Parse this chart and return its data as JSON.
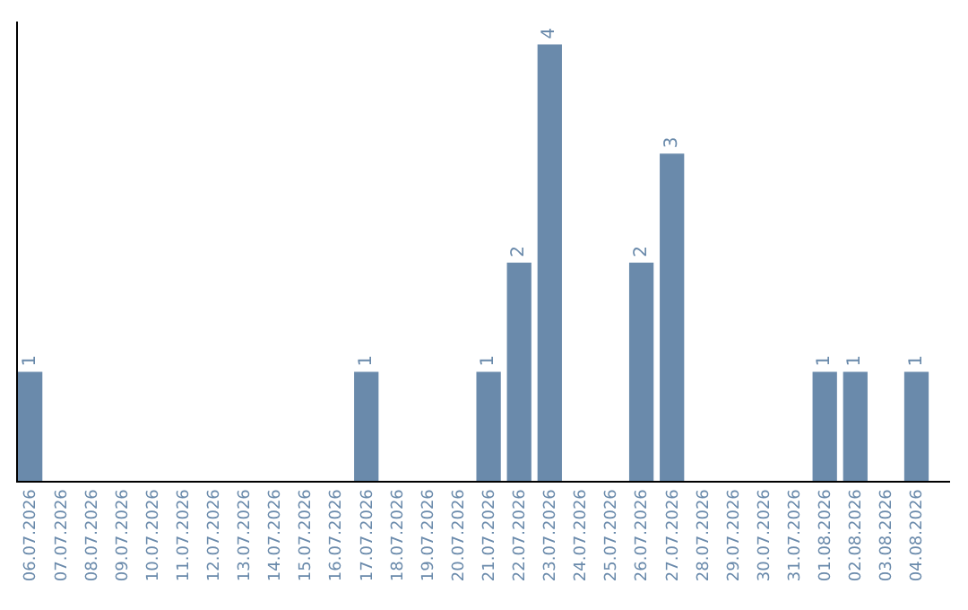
{
  "chart_data": {
    "type": "bar",
    "categories": [
      "06.07.2026",
      "07.07.2026",
      "08.07.2026",
      "09.07.2026",
      "10.07.2026",
      "11.07.2026",
      "12.07.2026",
      "13.07.2026",
      "14.07.2026",
      "15.07.2026",
      "16.07.2026",
      "17.07.2026",
      "18.07.2026",
      "19.07.2026",
      "20.07.2026",
      "21.07.2026",
      "22.07.2026",
      "23.07.2026",
      "24.07.2026",
      "25.07.2026",
      "26.07.2026",
      "27.07.2026",
      "28.07.2026",
      "29.07.2026",
      "30.07.2026",
      "31.07.2026",
      "01.08.2026",
      "02.08.2026",
      "03.08.2026",
      "04.08.2026"
    ],
    "values": [
      1,
      0,
      0,
      0,
      0,
      0,
      0,
      0,
      0,
      0,
      0,
      1,
      0,
      0,
      0,
      1,
      2,
      4,
      0,
      0,
      2,
      3,
      0,
      0,
      0,
      0,
      1,
      1,
      0,
      1
    ],
    "value_labels": [
      "1",
      null,
      null,
      null,
      null,
      null,
      null,
      null,
      null,
      null,
      null,
      "1",
      null,
      null,
      null,
      "1",
      "2",
      "4",
      null,
      null,
      "2",
      "3",
      null,
      null,
      null,
      null,
      "1",
      "1",
      null,
      "1"
    ],
    "color": "#6a8aab",
    "legend": false
  }
}
